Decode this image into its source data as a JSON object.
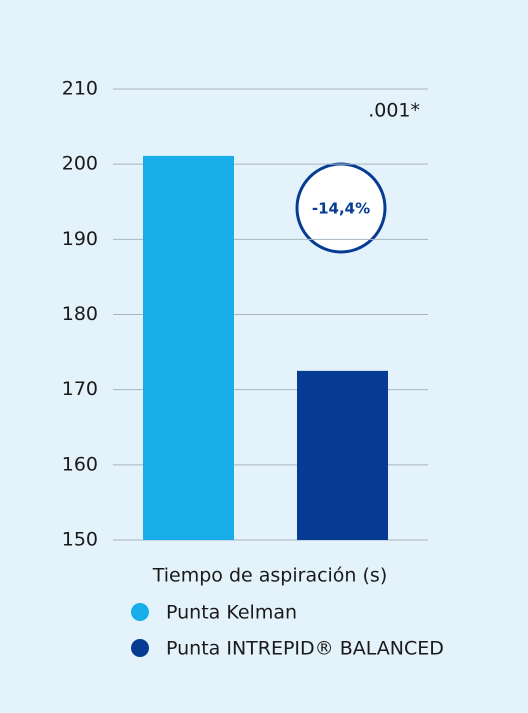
{
  "chart_data": {
    "type": "bar",
    "x_label": "Tiempo de aspiración (s)",
    "annotations": [
      ".001*",
      "-14,4%"
    ],
    "categories": [
      null
    ],
    "series": [
      {
        "name": "Punta Kelman",
        "color": "#17aeea",
        "values": [
          201.1
        ]
      },
      {
        "name": "Punta INTREPID® BALANCED",
        "color": "#063b94",
        "values": [
          172.5
        ]
      }
    ],
    "ylim": [
      150,
      210
    ],
    "yticks": [
      150,
      160,
      170,
      180,
      190,
      200,
      210
    ],
    "grid": true
  }
}
